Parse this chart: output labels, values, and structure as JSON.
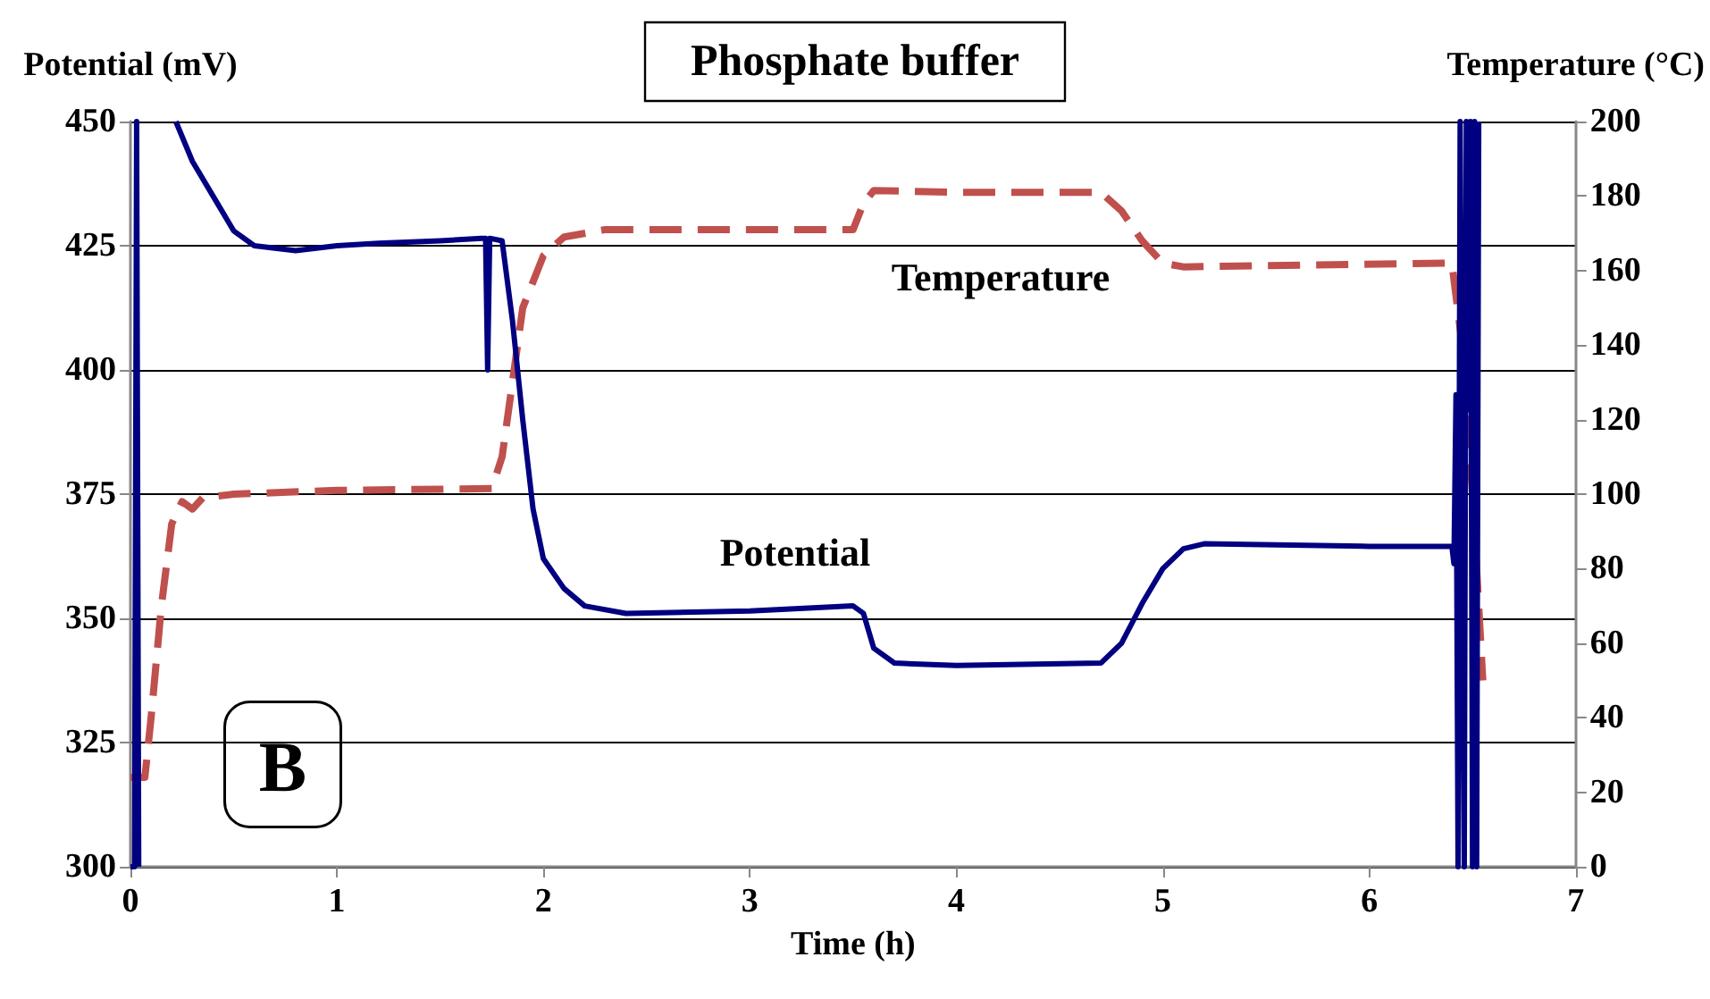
{
  "chart_data": {
    "type": "line",
    "title": "Phosphate buffer",
    "xlabel": "Time (h)",
    "ylabel": "Potential (mV)",
    "y2label": "Temperature (°C)",
    "xlim": [
      0,
      7
    ],
    "xticks": [
      0,
      1,
      2,
      3,
      4,
      5,
      6,
      7
    ],
    "ylim": [
      300,
      450
    ],
    "yticks": [
      300,
      325,
      350,
      375,
      400,
      425,
      450
    ],
    "y2lim": [
      0,
      200
    ],
    "y2ticks": [
      0,
      20,
      40,
      60,
      80,
      100,
      120,
      140,
      160,
      180,
      200
    ],
    "grid": "y",
    "marker": "none",
    "annotations": [
      "B"
    ],
    "series": [
      {
        "name": "Potential",
        "color": "#000080",
        "line_style": "solid",
        "x": [
          0.0,
          0.02,
          0.03,
          0.04,
          0.05,
          0.22,
          0.3,
          0.4,
          0.5,
          0.6,
          0.8,
          1.0,
          1.2,
          1.5,
          1.7,
          1.72,
          1.73,
          1.74,
          1.8,
          1.85,
          1.9,
          1.95,
          2.0,
          2.1,
          2.2,
          2.4,
          3.0,
          3.5,
          3.55,
          3.6,
          3.7,
          4.0,
          4.7,
          4.8,
          4.9,
          5.0,
          5.1,
          5.2,
          6.0,
          6.4,
          6.41,
          6.42,
          6.43,
          6.44,
          6.46,
          6.47,
          6.48,
          6.49,
          6.5,
          6.51,
          6.52,
          6.53
        ],
        "values": [
          300,
          300,
          450,
          300,
          null,
          450,
          442,
          435,
          428,
          425,
          424,
          425,
          425.5,
          426,
          426.5,
          426.5,
          400,
          426.5,
          426,
          410,
          390,
          372,
          362,
          356,
          352.5,
          351,
          351.5,
          352.5,
          351,
          344,
          341,
          340.5,
          341,
          345,
          353,
          360,
          364,
          365,
          364.5,
          364.5,
          361,
          395,
          300,
          450,
          300,
          450,
          392,
          450,
          300,
          450,
          300,
          450
        ]
      },
      {
        "name": "Temperature",
        "color": "#c0504d",
        "line_style": "dashed",
        "axis": "y2",
        "x": [
          0.0,
          0.07,
          0.1,
          0.15,
          0.2,
          0.25,
          0.3,
          0.35,
          0.5,
          1.0,
          1.75,
          1.8,
          1.85,
          1.9,
          2.0,
          2.1,
          2.3,
          3.5,
          3.55,
          3.6,
          4.0,
          4.7,
          4.8,
          4.9,
          5.0,
          5.1,
          6.4,
          6.45,
          6.5,
          6.52,
          6.55
        ],
        "values": [
          24,
          24,
          40,
          70,
          92,
          98,
          96,
          99,
          100,
          101,
          101.5,
          110,
          130,
          150,
          164,
          169,
          171,
          171,
          178,
          181.5,
          181,
          181,
          176,
          168,
          162,
          161,
          162,
          140,
          100,
          80,
          50
        ]
      }
    ]
  }
}
